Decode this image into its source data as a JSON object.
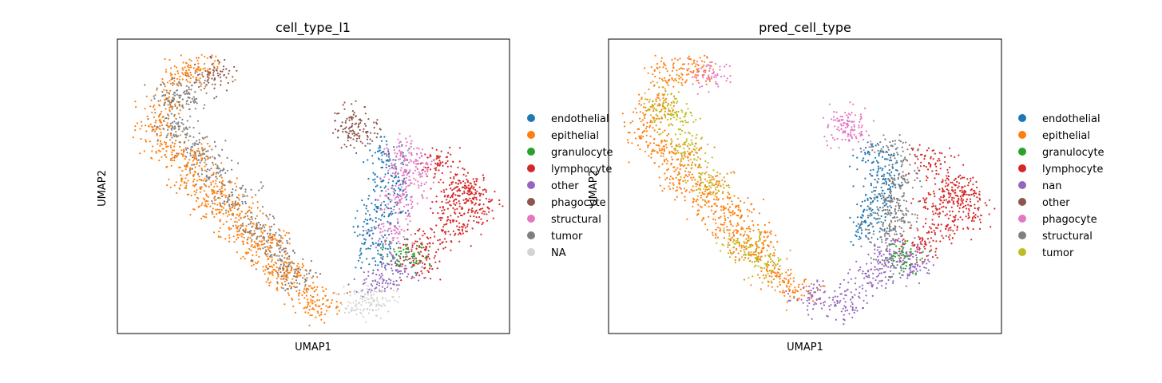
{
  "colors": {
    "endothelial": "#1f77b4",
    "epithelial": "#ff7f0e",
    "granulocyte": "#2ca02c",
    "lymphocyte": "#d62728",
    "purple": "#9467bd",
    "brown": "#8c564b",
    "pink": "#e377c2",
    "gray": "#7f7f7f",
    "olive": "#bcbd22",
    "na": "#d3d3d3"
  },
  "chart_data": [
    {
      "type": "scatter",
      "title": "cell_type_l1",
      "xlabel": "UMAP1",
      "ylabel": "UMAP2",
      "ticks": "none",
      "legend_position": "right",
      "legend": [
        {
          "label": "endothelial",
          "color": "#1f77b4"
        },
        {
          "label": "epithelial",
          "color": "#ff7f0e"
        },
        {
          "label": "granulocyte",
          "color": "#2ca02c"
        },
        {
          "label": "lymphocyte",
          "color": "#d62728"
        },
        {
          "label": "other",
          "color": "#9467bd"
        },
        {
          "label": "phagocyte",
          "color": "#8c564b"
        },
        {
          "label": "structural",
          "color": "#e377c2"
        },
        {
          "label": "tumor",
          "color": "#7f7f7f"
        },
        {
          "label": "NA",
          "color": "#d3d3d3"
        }
      ],
      "clusters": [
        {
          "category": "epithelial",
          "points": [
            [
              0.12,
              0.78
            ],
            [
              0.16,
              0.88
            ],
            [
              0.22,
              0.9
            ],
            [
              0.1,
              0.7
            ],
            [
              0.13,
              0.62
            ],
            [
              0.18,
              0.52
            ],
            [
              0.24,
              0.44
            ],
            [
              0.3,
              0.36
            ],
            [
              0.36,
              0.28
            ],
            [
              0.42,
              0.2
            ],
            [
              0.48,
              0.14
            ],
            [
              0.52,
              0.1
            ],
            [
              0.2,
              0.6
            ],
            [
              0.26,
              0.5
            ],
            [
              0.32,
              0.42
            ],
            [
              0.38,
              0.32
            ],
            [
              0.44,
              0.22
            ]
          ]
        },
        {
          "category": "tumor",
          "points": [
            [
              0.14,
              0.8
            ],
            [
              0.18,
              0.82
            ],
            [
              0.15,
              0.7
            ],
            [
              0.2,
              0.64
            ],
            [
              0.24,
              0.56
            ],
            [
              0.3,
              0.46
            ],
            [
              0.35,
              0.36
            ],
            [
              0.4,
              0.28
            ],
            [
              0.45,
              0.2
            ]
          ]
        },
        {
          "category": "phagocyte",
          "points": [
            [
              0.25,
              0.88
            ],
            [
              0.6,
              0.72
            ],
            [
              0.62,
              0.68
            ]
          ]
        },
        {
          "category": "endothelial",
          "points": [
            [
              0.68,
              0.6
            ],
            [
              0.7,
              0.52
            ],
            [
              0.68,
              0.44
            ],
            [
              0.66,
              0.36
            ],
            [
              0.66,
              0.28
            ]
          ]
        },
        {
          "category": "structural",
          "points": [
            [
              0.72,
              0.62
            ],
            [
              0.74,
              0.52
            ],
            [
              0.72,
              0.44
            ],
            [
              0.7,
              0.34
            ],
            [
              0.76,
              0.58
            ]
          ]
        },
        {
          "category": "lymphocyte",
          "points": [
            [
              0.82,
              0.58
            ],
            [
              0.88,
              0.5
            ],
            [
              0.92,
              0.42
            ],
            [
              0.86,
              0.36
            ],
            [
              0.8,
              0.3
            ],
            [
              0.76,
              0.24
            ],
            [
              0.9,
              0.48
            ],
            [
              0.84,
              0.44
            ]
          ]
        },
        {
          "category": "other",
          "points": [
            [
              0.72,
              0.22
            ],
            [
              0.66,
              0.18
            ]
          ]
        },
        {
          "category": "granulocyte",
          "points": [
            [
              0.74,
              0.26
            ]
          ]
        },
        {
          "category": "NA",
          "points": [
            [
              0.62,
              0.1
            ],
            [
              0.66,
              0.12
            ]
          ]
        }
      ]
    },
    {
      "type": "scatter",
      "title": "pred_cell_type",
      "xlabel": "UMAP1",
      "ylabel": "UMAP2",
      "ticks": "none",
      "legend_position": "right",
      "legend": [
        {
          "label": "endothelial",
          "color": "#1f77b4"
        },
        {
          "label": "epithelial",
          "color": "#ff7f0e"
        },
        {
          "label": "granulocyte",
          "color": "#2ca02c"
        },
        {
          "label": "lymphocyte",
          "color": "#d62728"
        },
        {
          "label": "nan",
          "color": "#9467bd"
        },
        {
          "label": "other",
          "color": "#8c564b"
        },
        {
          "label": "phagocyte",
          "color": "#e377c2"
        },
        {
          "label": "structural",
          "color": "#7f7f7f"
        },
        {
          "label": "tumor",
          "color": "#bcbd22"
        }
      ],
      "clusters": [
        {
          "category": "epithelial",
          "points": [
            [
              0.12,
              0.78
            ],
            [
              0.16,
              0.88
            ],
            [
              0.22,
              0.9
            ],
            [
              0.1,
              0.7
            ],
            [
              0.13,
              0.62
            ],
            [
              0.18,
              0.52
            ],
            [
              0.24,
              0.44
            ],
            [
              0.3,
              0.36
            ],
            [
              0.36,
              0.28
            ],
            [
              0.42,
              0.2
            ],
            [
              0.48,
              0.14
            ],
            [
              0.2,
              0.6
            ],
            [
              0.26,
              0.5
            ],
            [
              0.32,
              0.42
            ],
            [
              0.38,
              0.32
            ]
          ]
        },
        {
          "category": "tumor",
          "points": [
            [
              0.14,
              0.78
            ],
            [
              0.18,
              0.72
            ],
            [
              0.2,
              0.62
            ],
            [
              0.26,
              0.52
            ],
            [
              0.34,
              0.3
            ],
            [
              0.4,
              0.24
            ]
          ]
        },
        {
          "category": "phagocyte",
          "points": [
            [
              0.26,
              0.88
            ],
            [
              0.6,
              0.72
            ],
            [
              0.62,
              0.68
            ]
          ]
        },
        {
          "category": "endothelial",
          "points": [
            [
              0.68,
              0.6
            ],
            [
              0.7,
              0.52
            ],
            [
              0.68,
              0.44
            ],
            [
              0.66,
              0.36
            ]
          ]
        },
        {
          "category": "structural",
          "points": [
            [
              0.72,
              0.62
            ],
            [
              0.74,
              0.52
            ],
            [
              0.72,
              0.44
            ],
            [
              0.7,
              0.34
            ],
            [
              0.74,
              0.4
            ]
          ]
        },
        {
          "category": "lymphocyte",
          "points": [
            [
              0.82,
              0.58
            ],
            [
              0.88,
              0.5
            ],
            [
              0.92,
              0.42
            ],
            [
              0.86,
              0.36
            ],
            [
              0.8,
              0.3
            ],
            [
              0.9,
              0.48
            ],
            [
              0.84,
              0.44
            ]
          ]
        },
        {
          "category": "nan",
          "points": [
            [
              0.7,
              0.24
            ],
            [
              0.66,
              0.18
            ],
            [
              0.6,
              0.1
            ],
            [
              0.52,
              0.12
            ],
            [
              0.74,
              0.28
            ],
            [
              0.78,
              0.22
            ]
          ]
        },
        {
          "category": "granulocyte",
          "points": [
            [
              0.74,
              0.26
            ]
          ]
        }
      ]
    }
  ]
}
